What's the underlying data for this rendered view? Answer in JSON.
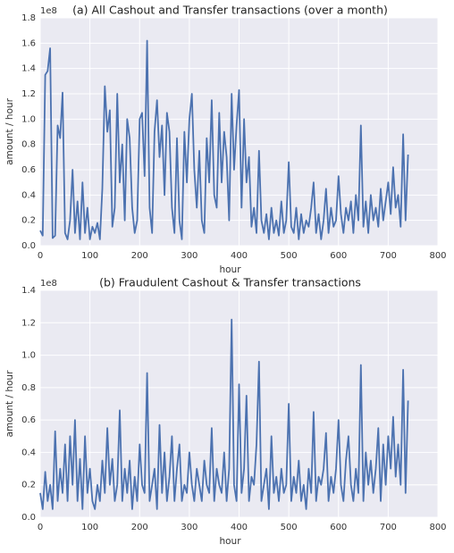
{
  "chart_data": [
    {
      "type": "line",
      "title": "(a) All Cashout and Transfer transactions (over a month)",
      "x_label": "hour",
      "y_label": "amount / hour",
      "y_offset_label": "1e8",
      "xlim": [
        0,
        800
      ],
      "xticks": [
        0,
        100,
        200,
        300,
        400,
        500,
        600,
        700,
        800
      ],
      "ylim": [
        0,
        1.8
      ],
      "yticks": [
        {
          "value": 0,
          "label": "0.0"
        },
        0.2,
        0.4,
        0.6,
        0.8,
        {
          "value": 1,
          "label": "1.0"
        },
        1.2,
        1.4,
        1.6,
        1.8
      ],
      "grid": true,
      "x": [
        0,
        5,
        10,
        15,
        20,
        25,
        30,
        35,
        40,
        45,
        50,
        55,
        60,
        65,
        70,
        75,
        80,
        85,
        90,
        95,
        100,
        105,
        110,
        115,
        120,
        125,
        130,
        135,
        140,
        145,
        150,
        155,
        160,
        165,
        170,
        175,
        180,
        185,
        190,
        195,
        200,
        205,
        210,
        215,
        220,
        225,
        230,
        235,
        240,
        245,
        250,
        255,
        260,
        265,
        270,
        275,
        280,
        285,
        290,
        295,
        300,
        305,
        310,
        315,
        320,
        325,
        330,
        335,
        340,
        345,
        350,
        355,
        360,
        365,
        370,
        375,
        380,
        385,
        390,
        395,
        400,
        405,
        410,
        415,
        420,
        425,
        430,
        435,
        440,
        445,
        450,
        455,
        460,
        465,
        470,
        475,
        480,
        485,
        490,
        495,
        500,
        505,
        510,
        515,
        520,
        525,
        530,
        535,
        540,
        545,
        550,
        555,
        560,
        565,
        570,
        575,
        580,
        585,
        590,
        595,
        600,
        605,
        610,
        615,
        620,
        625,
        630,
        635,
        640,
        645,
        650,
        655,
        660,
        665,
        670,
        675,
        680,
        685,
        690,
        695,
        700,
        705,
        710,
        715,
        720,
        725,
        730,
        735,
        740
      ],
      "series": [
        {
          "color": "#4c72b0",
          "values": [
            0.12,
            0.08,
            1.35,
            1.38,
            1.56,
            0.06,
            0.08,
            0.95,
            0.85,
            1.21,
            0.1,
            0.05,
            0.2,
            0.6,
            0.1,
            0.35,
            0.05,
            0.5,
            0.1,
            0.3,
            0.05,
            0.15,
            0.1,
            0.18,
            0.05,
            0.45,
            1.26,
            0.9,
            1.07,
            0.15,
            0.3,
            1.2,
            0.5,
            0.8,
            0.2,
            1.0,
            0.85,
            0.3,
            0.1,
            0.2,
            1.0,
            1.05,
            0.55,
            1.62,
            0.3,
            0.1,
            0.9,
            1.15,
            0.7,
            0.95,
            0.4,
            1.05,
            0.9,
            0.3,
            0.1,
            0.85,
            0.2,
            0.05,
            0.9,
            0.5,
            1.0,
            1.2,
            0.6,
            0.3,
            0.75,
            0.2,
            0.1,
            0.85,
            0.5,
            1.15,
            0.4,
            0.3,
            1.05,
            0.5,
            0.9,
            0.7,
            0.2,
            1.2,
            0.6,
            0.95,
            1.23,
            0.3,
            1.0,
            0.5,
            0.7,
            0.15,
            0.3,
            0.1,
            0.75,
            0.2,
            0.1,
            0.25,
            0.05,
            0.3,
            0.1,
            0.2,
            0.08,
            0.35,
            0.1,
            0.2,
            0.66,
            0.15,
            0.1,
            0.3,
            0.05,
            0.25,
            0.1,
            0.2,
            0.15,
            0.3,
            0.5,
            0.1,
            0.25,
            0.05,
            0.2,
            0.45,
            0.1,
            0.3,
            0.15,
            0.2,
            0.55,
            0.25,
            0.1,
            0.3,
            0.2,
            0.35,
            0.1,
            0.4,
            0.2,
            0.95,
            0.15,
            0.35,
            0.1,
            0.4,
            0.2,
            0.3,
            0.15,
            0.45,
            0.2,
            0.35,
            0.5,
            0.25,
            0.62,
            0.3,
            0.4,
            0.15,
            0.88,
            0.2,
            0.72
          ]
        }
      ]
    },
    {
      "type": "line",
      "title": "(b) Fraudulent Cashout & Transfer transactions",
      "x_label": "hour",
      "y_label": "amount / hour",
      "y_offset_label": "1e8",
      "xlim": [
        0,
        800
      ],
      "xticks": [
        0,
        100,
        200,
        300,
        400,
        500,
        600,
        700,
        800
      ],
      "ylim": [
        0,
        1.4
      ],
      "yticks": [
        {
          "value": 0,
          "label": "0.0"
        },
        0.2,
        0.4,
        0.6,
        0.8,
        {
          "value": 1,
          "label": "1.0"
        },
        1.2,
        1.4
      ],
      "grid": true,
      "x": [
        0,
        5,
        10,
        15,
        20,
        25,
        30,
        35,
        40,
        45,
        50,
        55,
        60,
        65,
        70,
        75,
        80,
        85,
        90,
        95,
        100,
        105,
        110,
        115,
        120,
        125,
        130,
        135,
        140,
        145,
        150,
        155,
        160,
        165,
        170,
        175,
        180,
        185,
        190,
        195,
        200,
        205,
        210,
        215,
        220,
        225,
        230,
        235,
        240,
        245,
        250,
        255,
        260,
        265,
        270,
        275,
        280,
        285,
        290,
        295,
        300,
        305,
        310,
        315,
        320,
        325,
        330,
        335,
        340,
        345,
        350,
        355,
        360,
        365,
        370,
        375,
        380,
        385,
        390,
        395,
        400,
        405,
        410,
        415,
        420,
        425,
        430,
        435,
        440,
        445,
        450,
        455,
        460,
        465,
        470,
        475,
        480,
        485,
        490,
        495,
        500,
        505,
        510,
        515,
        520,
        525,
        530,
        535,
        540,
        545,
        550,
        555,
        560,
        565,
        570,
        575,
        580,
        585,
        590,
        595,
        600,
        605,
        610,
        615,
        620,
        625,
        630,
        635,
        640,
        645,
        650,
        655,
        660,
        665,
        670,
        675,
        680,
        685,
        690,
        695,
        700,
        705,
        710,
        715,
        720,
        725,
        730,
        735,
        740
      ],
      "series": [
        {
          "color": "#4c72b0",
          "values": [
            0.15,
            0.05,
            0.28,
            0.1,
            0.2,
            0.05,
            0.53,
            0.1,
            0.3,
            0.15,
            0.45,
            0.1,
            0.5,
            0.2,
            0.6,
            0.1,
            0.36,
            0.05,
            0.5,
            0.15,
            0.3,
            0.1,
            0.05,
            0.2,
            0.1,
            0.35,
            0.15,
            0.55,
            0.2,
            0.36,
            0.1,
            0.2,
            0.66,
            0.1,
            0.3,
            0.15,
            0.35,
            0.05,
            0.25,
            0.1,
            0.45,
            0.2,
            0.15,
            0.89,
            0.1,
            0.2,
            0.3,
            0.05,
            0.57,
            0.15,
            0.4,
            0.1,
            0.25,
            0.5,
            0.1,
            0.3,
            0.45,
            0.1,
            0.2,
            0.15,
            0.4,
            0.2,
            0.1,
            0.3,
            0.2,
            0.1,
            0.35,
            0.2,
            0.15,
            0.55,
            0.1,
            0.3,
            0.2,
            0.15,
            0.4,
            0.1,
            0.3,
            1.22,
            0.2,
            0.1,
            0.82,
            0.15,
            0.3,
            0.75,
            0.1,
            0.25,
            0.2,
            0.45,
            0.96,
            0.1,
            0.2,
            0.3,
            0.05,
            0.5,
            0.15,
            0.25,
            0.1,
            0.3,
            0.15,
            0.2,
            0.7,
            0.1,
            0.25,
            0.15,
            0.35,
            0.1,
            0.2,
            0.05,
            0.3,
            0.15,
            0.65,
            0.1,
            0.25,
            0.2,
            0.3,
            0.52,
            0.1,
            0.25,
            0.15,
            0.3,
            0.6,
            0.2,
            0.1,
            0.35,
            0.5,
            0.2,
            0.1,
            0.3,
            0.15,
            0.94,
            0.1,
            0.4,
            0.2,
            0.35,
            0.15,
            0.3,
            0.55,
            0.1,
            0.45,
            0.2,
            0.5,
            0.3,
            0.62,
            0.25,
            0.45,
            0.2,
            0.91,
            0.15,
            0.72
          ]
        }
      ]
    }
  ]
}
